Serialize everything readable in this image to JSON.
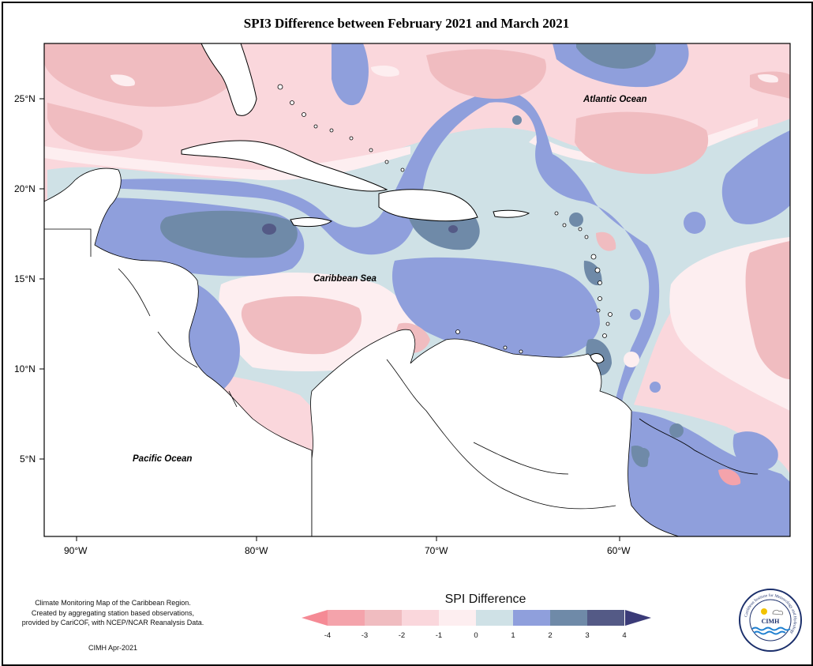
{
  "title": "SPI3 Difference between February 2021 and March 2021",
  "axes": {
    "x_ticks": [
      "90°W",
      "80°W",
      "70°W",
      "60°W"
    ],
    "y_ticks": [
      "25°N",
      "20°N",
      "15°N",
      "10°N",
      "5°N"
    ],
    "lon_range": [
      -92,
      -50
    ],
    "lat_range": [
      1,
      28
    ]
  },
  "labels": {
    "atlantic": "Atlantic Ocean",
    "caribbean": "Caribbean Sea",
    "pacific": "Pacific Ocean"
  },
  "credit": {
    "line1": "Climate Monitoring Map of the Caribbean Region.",
    "line2": "Created by aggregating station based observations,",
    "line3": "provided by CariCOF, with NCEP/NCAR Reanalysis Data.",
    "date": "CIMH Apr-2021"
  },
  "legend": {
    "title": "SPI Difference",
    "ticks": [
      "-4",
      "-3",
      "-2",
      "-1",
      "0",
      "1",
      "2",
      "3",
      "4"
    ],
    "colors": [
      "#f4a3ab",
      "#f0bcc0",
      "#fad7dc",
      "#fdeef0",
      "#cfe1e6",
      "#8f9fdc",
      "#6f8aa8",
      "#545a86"
    ],
    "arrow_low": "#f58a95",
    "arrow_high": "#3b3b78"
  },
  "logo": {
    "text": "CIMH",
    "ring_text": "Caribbean Institute for Meteorology and Hydrology"
  }
}
